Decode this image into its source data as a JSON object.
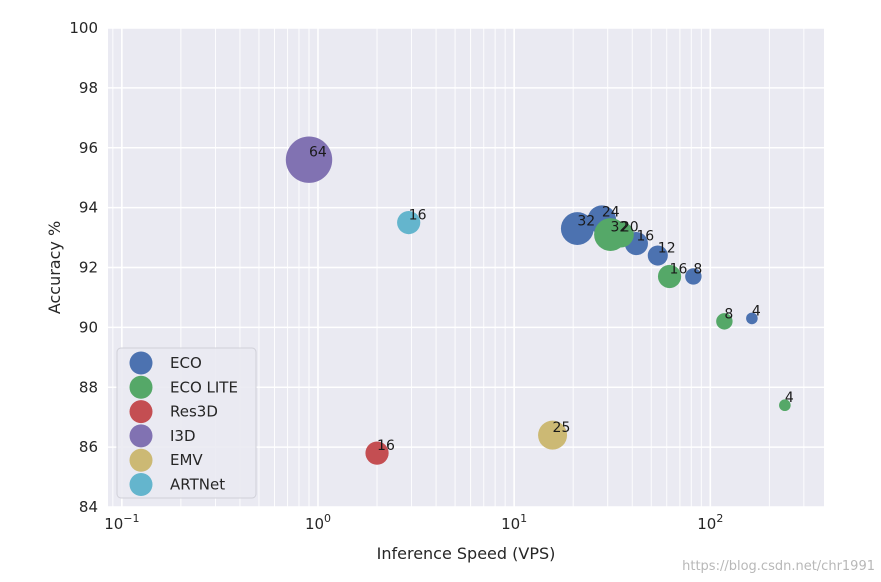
{
  "chart_data": {
    "type": "scatter",
    "title": "",
    "xlabel": "Inference Speed (VPS)",
    "ylabel": "Accuracy %",
    "xscale": "log",
    "xlim": [
      0.085,
      380
    ],
    "ylim": [
      84,
      100
    ],
    "yticks": [
      84,
      86,
      88,
      90,
      92,
      94,
      96,
      98,
      100
    ],
    "xticks": [
      {
        "value": 0.1,
        "base": "10",
        "exp": "−1"
      },
      {
        "value": 1,
        "base": "10",
        "exp": "0"
      },
      {
        "value": 10,
        "base": "10",
        "exp": "1"
      },
      {
        "value": 100,
        "base": "10",
        "exp": "2"
      }
    ],
    "grid": true,
    "legend_position": "lower-left",
    "series": [
      {
        "name": "ECO",
        "color": "#4c72b0",
        "points": [
          {
            "x": 21,
            "y": 93.3,
            "label": "32"
          },
          {
            "x": 28,
            "y": 93.6,
            "label": "24"
          },
          {
            "x": 42,
            "y": 92.8,
            "label": "16"
          },
          {
            "x": 54,
            "y": 92.4,
            "label": "12"
          },
          {
            "x": 82,
            "y": 91.7,
            "label": "8"
          },
          {
            "x": 163,
            "y": 90.3,
            "label": "4"
          }
        ]
      },
      {
        "name": "ECO LITE",
        "color": "#55a868",
        "points": [
          {
            "x": 31,
            "y": 93.1,
            "label": "32"
          },
          {
            "x": 35,
            "y": 93.1,
            "label": "20"
          },
          {
            "x": 62,
            "y": 91.7,
            "label": "16"
          },
          {
            "x": 118,
            "y": 90.2,
            "label": "8"
          },
          {
            "x": 240,
            "y": 87.4,
            "label": "4"
          }
        ]
      },
      {
        "name": "Res3D",
        "color": "#c44e52",
        "points": [
          {
            "x": 2.0,
            "y": 85.8,
            "label": "16"
          }
        ]
      },
      {
        "name": "I3D",
        "color": "#8172b2",
        "points": [
          {
            "x": 0.9,
            "y": 95.6,
            "label": "64"
          }
        ]
      },
      {
        "name": "EMV",
        "color": "#ccb974",
        "points": [
          {
            "x": 15.7,
            "y": 86.4,
            "label": "25"
          }
        ]
      },
      {
        "name": "ARTNet",
        "color": "#64b5cd",
        "points": [
          {
            "x": 2.9,
            "y": 93.5,
            "label": "16"
          }
        ]
      }
    ]
  },
  "watermark": "https://blog.csdn.net/chr1991"
}
